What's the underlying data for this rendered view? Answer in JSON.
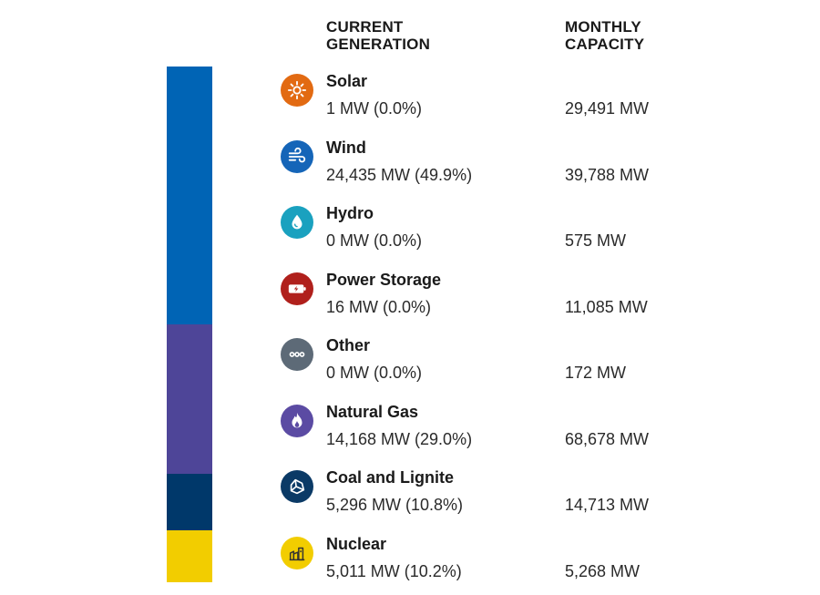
{
  "headers": {
    "current": "CURRENT\nGENERATION",
    "capacity": "MONTHLY\nCAPACITY"
  },
  "chart_data": {
    "type": "bar",
    "categories": [
      "Solar",
      "Wind",
      "Hydro",
      "Power Storage",
      "Other",
      "Natural Gas",
      "Coal and Lignite",
      "Nuclear"
    ],
    "series": [
      {
        "values": [
          1,
          24435,
          0,
          16,
          0,
          14168,
          5296,
          5011
        ]
      },
      {
        "values": [
          29491,
          39788,
          575,
          11085,
          172,
          68678,
          14713,
          5268
        ]
      }
    ],
    "unit": "MW",
    "share_percent": [
      0.0,
      49.9,
      0.0,
      0.0,
      0.0,
      29.0,
      10.8,
      10.2
    ]
  },
  "sources": [
    {
      "name": "Solar",
      "icon": "sun-icon",
      "color": "#e26a12",
      "generation": "1 MW (0.0%)",
      "capacity": "29,491 MW"
    },
    {
      "name": "Wind",
      "icon": "wind-icon",
      "color": "#1565b8",
      "generation": "24,435 MW (49.9%)",
      "capacity": "39,788 MW"
    },
    {
      "name": "Hydro",
      "icon": "water-drop-icon",
      "color": "#1aa1bf",
      "generation": "0 MW (0.0%)",
      "capacity": "575 MW"
    },
    {
      "name": "Power Storage",
      "icon": "battery-icon",
      "color": "#b0201c",
      "generation": "16 MW (0.0%)",
      "capacity": "11,085 MW"
    },
    {
      "name": "Other",
      "icon": "more-dots-icon",
      "color": "#5d6a77",
      "generation": "0 MW (0.0%)",
      "capacity": "172 MW"
    },
    {
      "name": "Natural Gas",
      "icon": "flame-icon",
      "color": "#5b4ba3",
      "generation": "14,168 MW (29.0%)",
      "capacity": "68,678 MW"
    },
    {
      "name": "Coal and Lignite",
      "icon": "coal-icon",
      "color": "#0b3a66",
      "generation": "5,296 MW (10.8%)",
      "capacity": "14,713 MW"
    },
    {
      "name": "Nuclear",
      "icon": "nuclear-plant-icon",
      "color": "#f2cd00",
      "generation": "5,011 MW (10.2%)",
      "capacity": "5,268 MW"
    }
  ],
  "stacked_bar": {
    "segments": [
      {
        "source": "Wind",
        "share": 49.9,
        "color": "#0064b5"
      },
      {
        "source": "Natural Gas",
        "share": 29.0,
        "color": "#4e4598"
      },
      {
        "source": "Coal and Lignite",
        "share": 10.8,
        "color": "#00386a"
      },
      {
        "source": "Nuclear",
        "share": 10.2,
        "color": "#f2cd00"
      }
    ]
  }
}
